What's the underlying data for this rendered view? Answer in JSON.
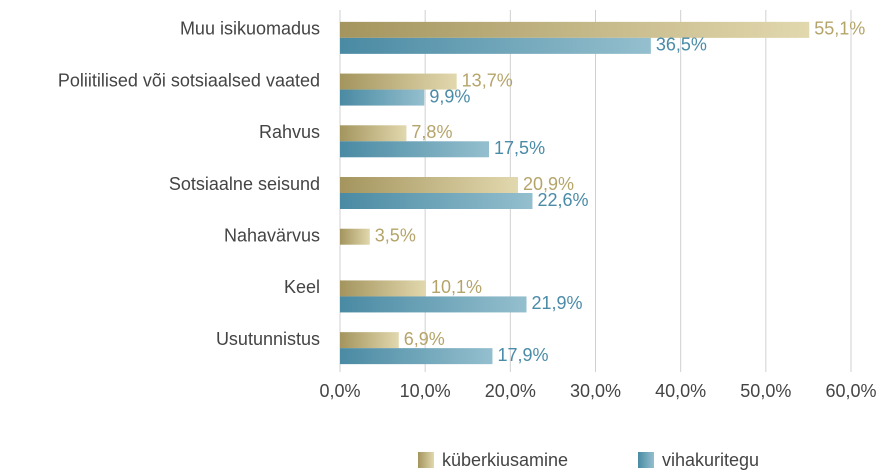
{
  "chart_data": {
    "type": "bar",
    "orientation": "horizontal",
    "categories": [
      "Muu isikuomadus",
      "Poliitilised või sotsiaalsed vaated",
      "Rahvus",
      "Sotsiaalne seisund",
      "Nahavärvus",
      "Keel",
      "Usutunnistus"
    ],
    "series": [
      {
        "name": "küberkiusamine",
        "color": "#b5a46a",
        "values": [
          55.1,
          13.7,
          7.8,
          20.9,
          3.5,
          10.1,
          6.9
        ],
        "value_labels": [
          "55,1%",
          "13,7%",
          "7,8%",
          "20,9%",
          "3,5%",
          "10,1%",
          "6,9%"
        ]
      },
      {
        "name": "vihakuritegu",
        "color": "#4a8ba8",
        "values": [
          36.5,
          9.9,
          17.5,
          22.6,
          null,
          21.9,
          17.9
        ],
        "value_labels": [
          "36,5%",
          "9,9%",
          "17,5%",
          "22,6%",
          null,
          "21,9%",
          "17,9%"
        ]
      }
    ],
    "xlim": [
      0,
      60
    ],
    "xticks": [
      {
        "value": 0,
        "label": "0,0%"
      },
      {
        "value": 10,
        "label": "10,0%"
      },
      {
        "value": 20,
        "label": "20,0%"
      },
      {
        "value": 30,
        "label": "30,0%"
      },
      {
        "value": 40,
        "label": "40,0%"
      },
      {
        "value": 50,
        "label": "50,0%"
      },
      {
        "value": 60,
        "label": "60,0%"
      }
    ],
    "grid": true,
    "legend": "bottom"
  }
}
